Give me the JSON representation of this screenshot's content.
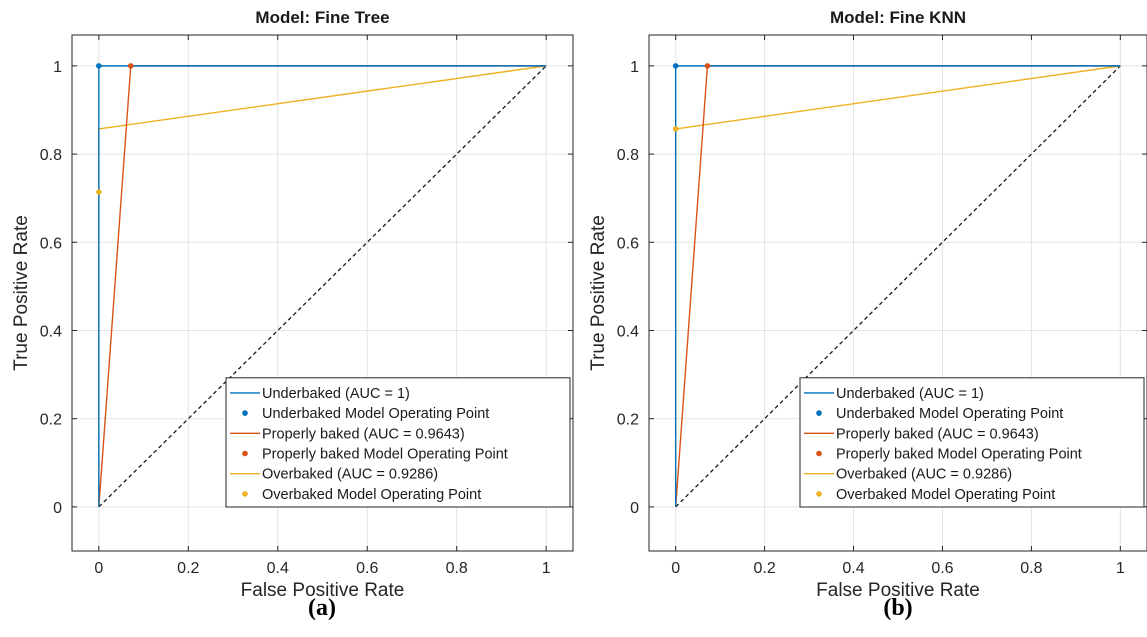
{
  "chart_data": [
    {
      "type": "line",
      "title": "Model: Fine Tree",
      "caption": "(a)",
      "xlabel": "False Positive Rate",
      "ylabel": "True Positive Rate",
      "xlim": [
        -0.06,
        1.06
      ],
      "ylim": [
        -0.1,
        1.07
      ],
      "xticks": [
        0,
        0.2,
        0.4,
        0.6,
        0.8,
        1
      ],
      "xtick_labels": [
        "0",
        "0.2",
        "0.4",
        "0.6",
        "0.8",
        "1"
      ],
      "yticks": [
        0,
        0.2,
        0.4,
        0.6,
        0.8,
        1
      ],
      "ytick_labels": [
        "0",
        "0.2",
        "0.4",
        "0.6",
        "0.8",
        "1"
      ],
      "grid": true,
      "legend_position": "bottom-right",
      "series": [
        {
          "name": "Underbaked (AUC = 1)",
          "kind": "line",
          "color": "#0072BD",
          "x": [
            0,
            0,
            1
          ],
          "y": [
            0,
            1,
            1
          ]
        },
        {
          "name": "Underbaked Model Operating Point",
          "kind": "point",
          "color": "#0072BD",
          "x": [
            0
          ],
          "y": [
            1
          ]
        },
        {
          "name": "Properly baked (AUC = 0.9643)",
          "kind": "line",
          "color": "#D95319",
          "x": [
            0,
            0.0714,
            1
          ],
          "y": [
            0,
            1,
            1
          ]
        },
        {
          "name": "Properly baked Model Operating Point",
          "kind": "point",
          "color": "#D95319",
          "x": [
            0.0714
          ],
          "y": [
            1
          ]
        },
        {
          "name": "Overbaked (AUC = 0.9286)",
          "kind": "line",
          "color": "#EDB120",
          "x": [
            0,
            0,
            1
          ],
          "y": [
            0,
            0.857,
            1
          ]
        },
        {
          "name": "Overbaked Model Operating Point",
          "kind": "point",
          "color": "#EDB120",
          "x": [
            0
          ],
          "y": [
            0.714
          ]
        }
      ],
      "reference_line": {
        "x": [
          0,
          1
        ],
        "y": [
          0,
          1
        ],
        "color": "#1a1a1a"
      }
    },
    {
      "type": "line",
      "title": "Model: Fine KNN",
      "caption": "(b)",
      "xlabel": "False Positive Rate",
      "ylabel": "True Positive Rate",
      "xlim": [
        -0.06,
        1.06
      ],
      "ylim": [
        -0.1,
        1.07
      ],
      "xticks": [
        0,
        0.2,
        0.4,
        0.6,
        0.8,
        1
      ],
      "xtick_labels": [
        "0",
        "0.2",
        "0.4",
        "0.6",
        "0.8",
        "1"
      ],
      "yticks": [
        0,
        0.2,
        0.4,
        0.6,
        0.8,
        1
      ],
      "ytick_labels": [
        "0",
        "0.2",
        "0.4",
        "0.6",
        "0.8",
        "1"
      ],
      "grid": true,
      "legend_position": "bottom-right",
      "series": [
        {
          "name": "Underbaked (AUC = 1)",
          "kind": "line",
          "color": "#0072BD",
          "x": [
            0,
            0,
            1
          ],
          "y": [
            0,
            1,
            1
          ]
        },
        {
          "name": "Underbaked Model Operating Point",
          "kind": "point",
          "color": "#0072BD",
          "x": [
            0
          ],
          "y": [
            1
          ]
        },
        {
          "name": "Properly baked (AUC = 0.9643)",
          "kind": "line",
          "color": "#D95319",
          "x": [
            0,
            0.0714,
            1
          ],
          "y": [
            0,
            1,
            1
          ]
        },
        {
          "name": "Properly baked Model Operating Point",
          "kind": "point",
          "color": "#D95319",
          "x": [
            0.0714
          ],
          "y": [
            1
          ]
        },
        {
          "name": "Overbaked (AUC = 0.9286)",
          "kind": "line",
          "color": "#EDB120",
          "x": [
            0,
            0,
            1
          ],
          "y": [
            0,
            0.857,
            1
          ]
        },
        {
          "name": "Overbaked Model Operating Point",
          "kind": "point",
          "color": "#EDB120",
          "x": [
            0
          ],
          "y": [
            0.857
          ]
        }
      ],
      "reference_line": {
        "x": [
          0,
          1
        ],
        "y": [
          0,
          1
        ],
        "color": "#1a1a1a"
      }
    }
  ]
}
